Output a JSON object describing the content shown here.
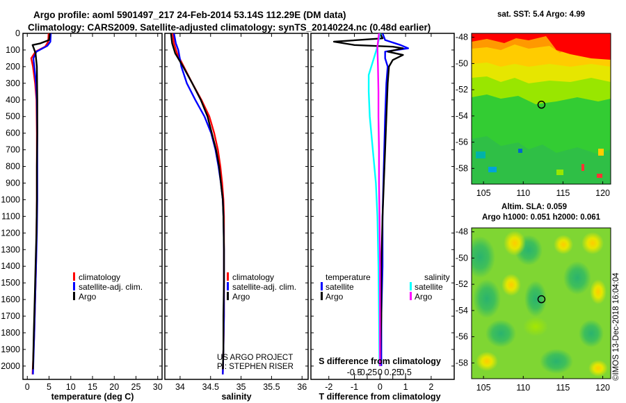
{
  "title_line1": "Argo profile: aoml 5901497_217 24-Feb-2014 53.14S 112.29E (DM data)",
  "title_line2": "Climatology: CARS2009. Satellite-adjusted climatology: synTS_20140224.nc (0.48d earlier)",
  "colors": {
    "climatology": "#ff0000",
    "satellite": "#0000ff",
    "argo": "#000000",
    "sat_salinity": "#00ffff",
    "argo_salinity": "#ff00ff"
  },
  "chart_data": [
    {
      "type": "line",
      "id": "temperature",
      "xlabel": "temperature (deg C)",
      "ylabel": "",
      "xlim": [
        -1,
        31
      ],
      "ylim": [
        2080,
        0
      ],
      "xticks": [
        0,
        5,
        10,
        15,
        20,
        25,
        30
      ],
      "yticks": [
        0,
        100,
        200,
        300,
        400,
        500,
        600,
        700,
        800,
        900,
        1000,
        1100,
        1200,
        1300,
        1400,
        1500,
        1600,
        1700,
        1800,
        1900,
        2000
      ],
      "legend": [
        "climatology",
        "satellite-adj. clim.",
        "Argo"
      ],
      "series": [
        {
          "name": "climatology",
          "color": "#ff0000",
          "points": [
            [
              4.9,
              0
            ],
            [
              4.8,
              50
            ],
            [
              4.1,
              80
            ],
            [
              1.9,
              110
            ],
            [
              0.9,
              150
            ],
            [
              1.3,
              200
            ],
            [
              1.8,
              300
            ],
            [
              2.1,
              400
            ],
            [
              2.2,
              600
            ],
            [
              2.2,
              800
            ],
            [
              2.2,
              1000
            ],
            [
              2.1,
              1200
            ],
            [
              2.0,
              1400
            ],
            [
              1.8,
              1600
            ],
            [
              1.6,
              1800
            ],
            [
              1.2,
              2050
            ]
          ]
        },
        {
          "name": "satellite-adj. clim.",
          "color": "#0000ff",
          "points": [
            [
              5.4,
              0
            ],
            [
              5.3,
              50
            ],
            [
              4.6,
              75
            ],
            [
              2.1,
              110
            ],
            [
              1.4,
              150
            ],
            [
              1.6,
              200
            ],
            [
              2.0,
              300
            ],
            [
              2.2,
              400
            ],
            [
              2.3,
              600
            ],
            [
              2.3,
              800
            ],
            [
              2.3,
              1000
            ],
            [
              2.2,
              1200
            ],
            [
              2.0,
              1400
            ],
            [
              1.8,
              1600
            ],
            [
              1.6,
              1800
            ],
            [
              1.3,
              2050
            ]
          ]
        },
        {
          "name": "Argo",
          "color": "#000000",
          "points": [
            [
              5.2,
              0
            ],
            [
              5.0,
              40
            ],
            [
              3.0,
              60
            ],
            [
              1.2,
              70
            ],
            [
              1.5,
              90
            ],
            [
              1.9,
              120
            ],
            [
              2.2,
              200
            ],
            [
              2.3,
              400
            ],
            [
              2.3,
              600
            ],
            [
              2.2,
              800
            ],
            [
              2.2,
              1000
            ],
            [
              2.1,
              1200
            ],
            [
              1.9,
              1400
            ],
            [
              1.7,
              1600
            ],
            [
              1.5,
              1800
            ],
            [
              1.3,
              2020
            ]
          ]
        }
      ]
    },
    {
      "type": "line",
      "id": "salinity",
      "xlabel": "salinity",
      "ylabel": "",
      "xlim": [
        33.75,
        36.1
      ],
      "ylim": [
        2080,
        0
      ],
      "xticks": [
        34,
        34.5,
        35,
        35.5,
        36
      ],
      "xtick_labels": [
        "34",
        "34.5",
        "35",
        "35.5",
        "36"
      ],
      "legend": [
        "climatology",
        "satellite-adj. clim.",
        "Argo"
      ],
      "credits": [
        "US ARGO PROJECT",
        "PI: STEPHEN RISER"
      ],
      "series": [
        {
          "name": "climatology",
          "color": "#ff0000",
          "points": [
            [
              33.88,
              0
            ],
            [
              33.9,
              60
            ],
            [
              33.95,
              120
            ],
            [
              34.06,
              200
            ],
            [
              34.2,
              300
            ],
            [
              34.35,
              400
            ],
            [
              34.48,
              500
            ],
            [
              34.56,
              600
            ],
            [
              34.62,
              700
            ],
            [
              34.66,
              800
            ],
            [
              34.69,
              900
            ],
            [
              34.71,
              1000
            ],
            [
              34.72,
              1100
            ],
            [
              34.72,
              1300
            ],
            [
              34.72,
              1500
            ],
            [
              34.72,
              1700
            ],
            [
              34.71,
              1900
            ],
            [
              34.7,
              2050
            ]
          ]
        },
        {
          "name": "satellite-adj. clim.",
          "color": "#0000ff",
          "points": [
            [
              33.9,
              0
            ],
            [
              33.93,
              60
            ],
            [
              33.97,
              100
            ],
            [
              34.02,
              200
            ],
            [
              34.11,
              300
            ],
            [
              34.25,
              400
            ],
            [
              34.4,
              500
            ],
            [
              34.51,
              600
            ],
            [
              34.58,
              700
            ],
            [
              34.63,
              800
            ],
            [
              34.67,
              900
            ],
            [
              34.7,
              1000
            ],
            [
              34.71,
              1100
            ],
            [
              34.72,
              1300
            ],
            [
              34.72,
              1500
            ],
            [
              34.72,
              1700
            ],
            [
              34.71,
              1900
            ],
            [
              34.7,
              2050
            ]
          ]
        },
        {
          "name": "Argo",
          "color": "#000000",
          "points": [
            [
              33.85,
              0
            ],
            [
              33.87,
              60
            ],
            [
              33.92,
              120
            ],
            [
              34.05,
              200
            ],
            [
              34.2,
              300
            ],
            [
              34.34,
              400
            ],
            [
              34.45,
              500
            ],
            [
              34.52,
              600
            ],
            [
              34.59,
              700
            ],
            [
              34.64,
              800
            ],
            [
              34.67,
              900
            ],
            [
              34.7,
              1000
            ],
            [
              34.71,
              1100
            ],
            [
              34.72,
              1300
            ],
            [
              34.72,
              1500
            ],
            [
              34.71,
              1700
            ],
            [
              34.71,
              1900
            ],
            [
              34.7,
              2020
            ]
          ]
        }
      ]
    },
    {
      "type": "line",
      "id": "difference",
      "xlabel": "T difference from climatology",
      "xlabel2": "S difference from climatology",
      "ylabel": "",
      "xlim": [
        -2.7,
        2.9
      ],
      "ylim": [
        2080,
        0
      ],
      "xticks": [
        -2,
        -1,
        0,
        1,
        2
      ],
      "s_ticks": [
        -0.5,
        -0.25,
        0,
        0.25,
        0.5
      ],
      "s_tick_labels": [
        "-0.5",
        "-0.25",
        "0",
        "0.25",
        "0.5"
      ],
      "legend_temperature_title": "temperature",
      "legend_salinity_title": "salinity",
      "legend": [
        "satellite",
        "Argo",
        "satellite",
        "Argo"
      ],
      "series": [
        {
          "name": "T satellite",
          "color": "#0000ff",
          "points": [
            [
              0.1,
              0
            ],
            [
              0.2,
              40
            ],
            [
              0.8,
              70
            ],
            [
              1.1,
              90
            ],
            [
              0.2,
              110
            ],
            [
              0.2,
              150
            ],
            [
              0.3,
              200
            ],
            [
              0.25,
              300
            ],
            [
              0.2,
              500
            ],
            [
              0.15,
              800
            ],
            [
              0.1,
              1100
            ],
            [
              0.1,
              1400
            ],
            [
              0.05,
              1700
            ],
            [
              0.05,
              2000
            ]
          ]
        },
        {
          "name": "T Argo",
          "color": "#000000",
          "points": [
            [
              0.0,
              0
            ],
            [
              0.1,
              30
            ],
            [
              -1.8,
              50
            ],
            [
              -1.0,
              70
            ],
            [
              0.5,
              80
            ],
            [
              0.9,
              90
            ],
            [
              0.6,
              100
            ],
            [
              0.3,
              110
            ],
            [
              0.9,
              130
            ],
            [
              0.5,
              160
            ],
            [
              0.35,
              200
            ],
            [
              0.3,
              300
            ],
            [
              0.25,
              500
            ],
            [
              0.2,
              700
            ],
            [
              0.15,
              900
            ],
            [
              0.1,
              1100
            ],
            [
              0.05,
              1400
            ],
            [
              0.05,
              1700
            ],
            [
              0.0,
              2000
            ]
          ]
        },
        {
          "name": "S satellite",
          "color": "#00ffff",
          "points": [
            [
              0.0,
              0
            ],
            [
              -0.05,
              80
            ],
            [
              -0.12,
              150
            ],
            [
              -0.22,
              250
            ],
            [
              -0.22,
              350
            ],
            [
              -0.2,
              500
            ],
            [
              -0.14,
              700
            ],
            [
              -0.08,
              900
            ],
            [
              -0.05,
              1100
            ],
            [
              -0.03,
              1400
            ],
            [
              -0.02,
              1700
            ],
            [
              -0.01,
              2000
            ]
          ]
        },
        {
          "name": "S Argo",
          "color": "#ff00ff",
          "points": [
            [
              -0.02,
              0
            ],
            [
              -0.05,
              80
            ],
            [
              -0.04,
              200
            ],
            [
              -0.03,
              350
            ],
            [
              -0.03,
              500
            ],
            [
              -0.02,
              700
            ],
            [
              -0.02,
              900
            ],
            [
              -0.01,
              1100
            ],
            [
              0.0,
              1400
            ],
            [
              0.0,
              1700
            ],
            [
              0.0,
              2000
            ]
          ]
        }
      ]
    },
    {
      "type": "heatmap",
      "id": "sst_map",
      "title": "sat. SST: 5.4 Argo: 4.99",
      "xlim": [
        103.5,
        121
      ],
      "ylim": [
        -59.2,
        -47.7
      ],
      "xticks": [
        105,
        110,
        115,
        120
      ],
      "yticks": [
        -48,
        -50,
        -52,
        -54,
        -56,
        -58
      ],
      "argo_location": [
        112.29,
        -53.14
      ]
    },
    {
      "type": "heatmap",
      "id": "sla_map",
      "title": "Altim. SLA: 0.059",
      "subtitle": "Argo h1000: 0.051 h2000: 0.061",
      "xlim": [
        103.5,
        121
      ],
      "ylim": [
        -59.2,
        -47.7
      ],
      "xticks": [
        105,
        110,
        115,
        120
      ],
      "yticks": [
        -48,
        -50,
        -52,
        -54,
        -56,
        -58
      ],
      "argo_location": [
        112.29,
        -53.14
      ]
    }
  ],
  "watermark": "©IMOS 13-Dec-2018 16:04:04"
}
